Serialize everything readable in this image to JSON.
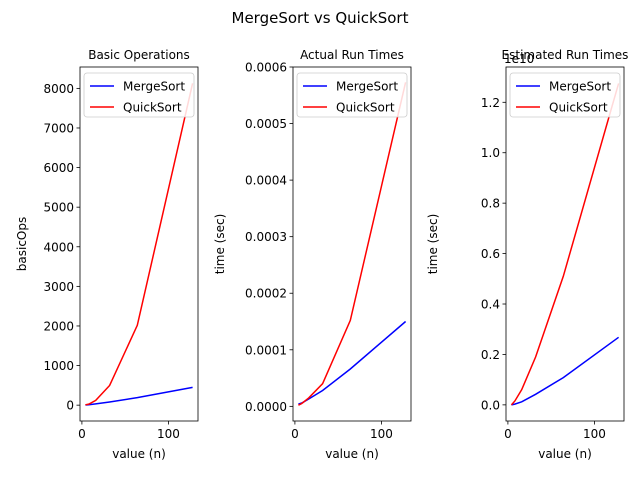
{
  "figure": {
    "title": "MergeSort vs QuickSort"
  },
  "chart_data": [
    {
      "type": "line",
      "title": "Basic Operations",
      "xlabel": "value (n)",
      "ylabel": "basicOps",
      "x": [
        4,
        8,
        16,
        32,
        64,
        128
      ],
      "series": [
        {
          "name": "MergeSort",
          "color": "#0000ff",
          "values": [
            4,
            12,
            32,
            80,
            192,
            448
          ]
        },
        {
          "name": "QuickSort",
          "color": "#ff0000",
          "values": [
            8,
            28,
            120,
            496,
            2016,
            8128
          ]
        }
      ],
      "xlim": [
        -2.2,
        134.2
      ],
      "ylim": [
        -400,
        8540
      ],
      "xticks": [
        0,
        100
      ],
      "yticks": [
        0,
        1000,
        2000,
        3000,
        4000,
        5000,
        6000,
        7000,
        8000
      ],
      "ytick_labels": [
        "0",
        "1000",
        "2000",
        "3000",
        "4000",
        "5000",
        "6000",
        "7000",
        "8000"
      ],
      "offset_text": "",
      "legend": "top-left",
      "grid": false
    },
    {
      "type": "line",
      "title": "Actual Run Times",
      "xlabel": "value (n)",
      "ylabel": "time (sec)",
      "x": [
        4,
        8,
        16,
        32,
        64,
        128
      ],
      "series": [
        {
          "name": "MergeSort",
          "color": "#0000ff",
          "values": [
            4e-06,
            6e-06,
            1.3e-05,
            2.8e-05,
            6.6e-05,
            0.00015
          ]
        },
        {
          "name": "QuickSort",
          "color": "#ff0000",
          "values": [
            2e-06,
            5e-06,
            1.5e-05,
            4e-05,
            0.000152,
            0.000573
          ]
        }
      ],
      "xlim": [
        -2.2,
        134.2
      ],
      "ylim": [
        -2.59e-05,
        0.0006
      ],
      "xticks": [
        0,
        100
      ],
      "yticks": [
        0,
        0.0001,
        0.0002,
        0.0003,
        0.0004,
        0.0005,
        0.0006
      ],
      "ytick_labels": [
        "0.0000",
        "0.0001",
        "0.0002",
        "0.0003",
        "0.0004",
        "0.0005",
        "0.0006"
      ],
      "offset_text": "",
      "legend": "top-left",
      "grid": false
    },
    {
      "type": "line",
      "title": "Estimated Run Times",
      "xlabel": "value (n)",
      "ylabel": "time (sec)",
      "x": [
        4,
        8,
        16,
        32,
        64,
        128
      ],
      "series": [
        {
          "name": "MergeSort",
          "color": "#0000ff",
          "values": [
            0.0,
            0.003,
            0.012,
            0.042,
            0.108,
            0.268
          ]
        },
        {
          "name": "QuickSort",
          "color": "#ff0000",
          "values": [
            0.0,
            0.015,
            0.06,
            0.19,
            0.51,
            1.275
          ]
        }
      ],
      "xlim": [
        -2.2,
        134.2
      ],
      "ylim": [
        -0.064,
        1.34
      ],
      "xticks": [
        0,
        100
      ],
      "yticks": [
        0.0,
        0.2,
        0.4,
        0.6,
        0.8,
        1.0,
        1.2
      ],
      "ytick_labels": [
        "0.0",
        "0.2",
        "0.4",
        "0.6",
        "0.8",
        "1.0",
        "1.2"
      ],
      "offset_text": "1e10",
      "legend": "top-left",
      "grid": false
    }
  ]
}
